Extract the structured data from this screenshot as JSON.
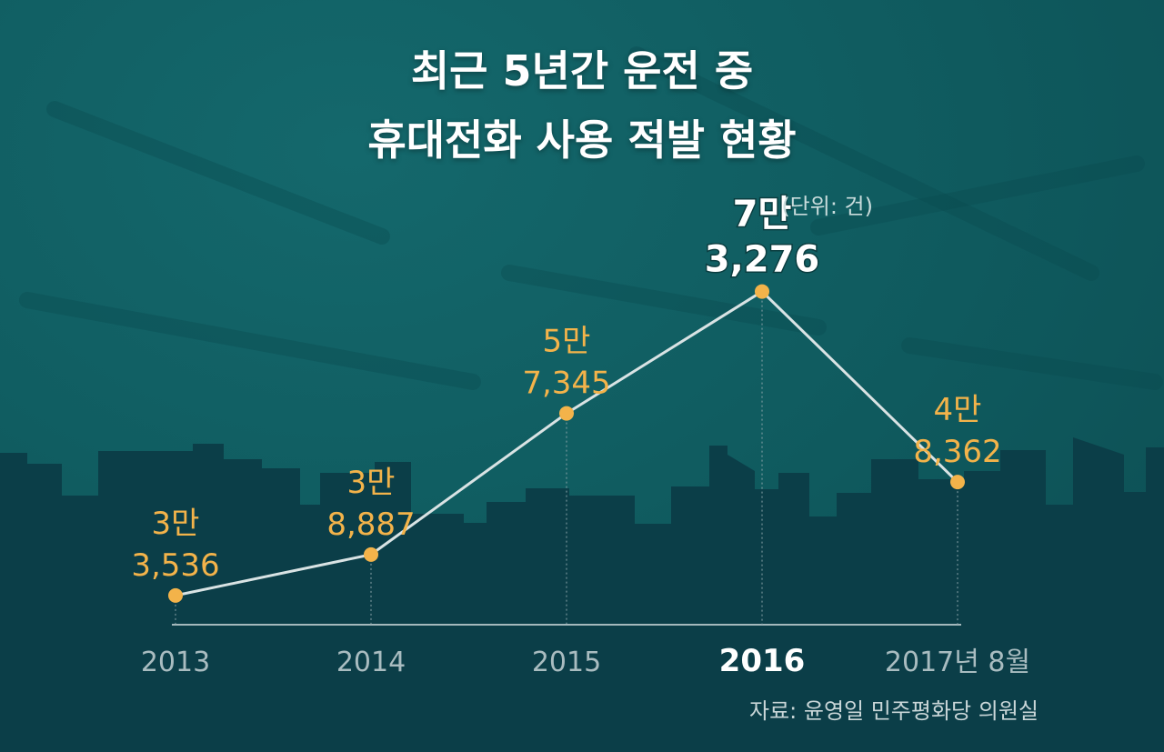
{
  "title_line1": "최근 5년간 운전 중",
  "title_line2": "휴대전화 사용 적발 현황",
  "unit": "(단위: 건)",
  "source": "자료: 윤영일 민주평화당 의원실",
  "colors": {
    "background": "#0f5a5e",
    "skyline": "#0b3e48",
    "line": "#d9e3e4",
    "point": "#f3b34a",
    "label": "#f3b34a",
    "highlight_label": "#ffffff",
    "tick": "#a9bcc0",
    "highlight_tick": "#ffffff"
  },
  "chart_data": {
    "type": "line",
    "title": "최근 5년간 운전 중 휴대전화 사용 적발 현황",
    "unit": "(단위: 건)",
    "categories": [
      "2013",
      "2014",
      "2015",
      "2016",
      "2017년 8월"
    ],
    "values": [
      33536,
      38887,
      57345,
      73276,
      48362
    ],
    "labels": [
      [
        "3만",
        "3,536"
      ],
      [
        "3만",
        "8,887"
      ],
      [
        "5만",
        "7,345"
      ],
      [
        "7만",
        "3,276"
      ],
      [
        "4만",
        "8,362"
      ]
    ],
    "highlight_index": 3,
    "legend": "none",
    "grid": false
  }
}
